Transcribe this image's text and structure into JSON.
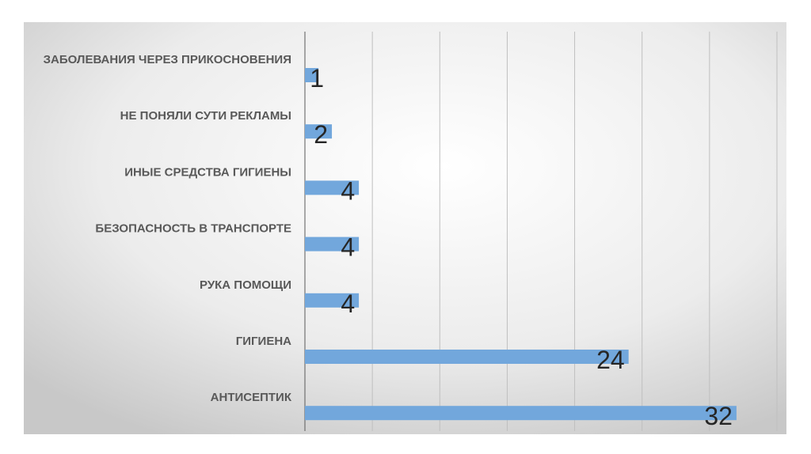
{
  "chart_data": {
    "type": "hbar",
    "categories": [
      "ЗАБОЛЕВАНИЯ ЧЕРЕЗ ПРИКОСНОВЕНИЯ",
      "НЕ ПОНЯЛИ СУТИ РЕКЛАМЫ",
      "ИНЫЕ СРЕДСТВА ГИГИЕНЫ",
      "БЕЗОПАСНОСТЬ В ТРАНСПОРТЕ",
      "РУКА ПОМОЩИ",
      "ГИГИЕНА",
      "АНТИСЕПТИК"
    ],
    "values": [
      1,
      2,
      4,
      4,
      4,
      24,
      32
    ],
    "color": "#72a7dc",
    "xlim": [
      0,
      35
    ],
    "xticks": [
      0,
      5,
      10,
      15,
      20,
      25,
      30,
      35
    ],
    "grid": true
  }
}
